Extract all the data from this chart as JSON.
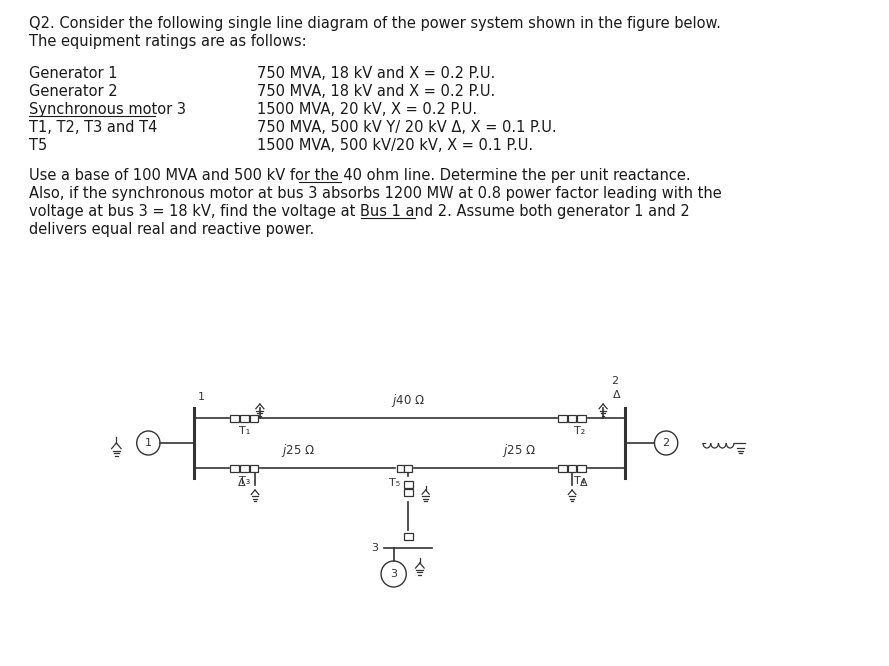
{
  "bg_color": "#ffffff",
  "text_color": "#1a1a1a",
  "title_line1": "Q2. Consider the following single line diagram of the power system shown in the figure below.",
  "title_line2": "The equipment ratings are as follows:",
  "equipment": [
    [
      "Generator 1",
      "750 MVA, 18 kV and X = 0.2 P.U."
    ],
    [
      "Generator 2",
      "750 MVA, 18 kV and X = 0.2 P.U."
    ],
    [
      "Synchronous motor 3",
      "1500 MVA, 20 kV, X = 0.2 P.U."
    ],
    [
      "T1, T2, T3 and T4",
      "750 MVA, 500 kV Y/ 20 kV Δ, X = 0.1 P.U."
    ],
    [
      "T5",
      "1500 MVA, 500 kV/20 kV, X = 0.1 P.U."
    ]
  ],
  "para_line1": "Use a base of 100 MVA and 500 kV for the 40 ohm line. Determine the per unit reactance.",
  "para_line2": "Also, if the synchronous motor at bus 3 absorbs 1200 MW at 0.8 power factor leading with the",
  "para_line3": "voltage at bus 3 = 18 kV, find the voltage at Bus 1 and 2. Assume both generator 1 and 2",
  "para_line4": "delivers equal real and reactive power.",
  "lc2": "#333333",
  "lw_main": 1.2
}
